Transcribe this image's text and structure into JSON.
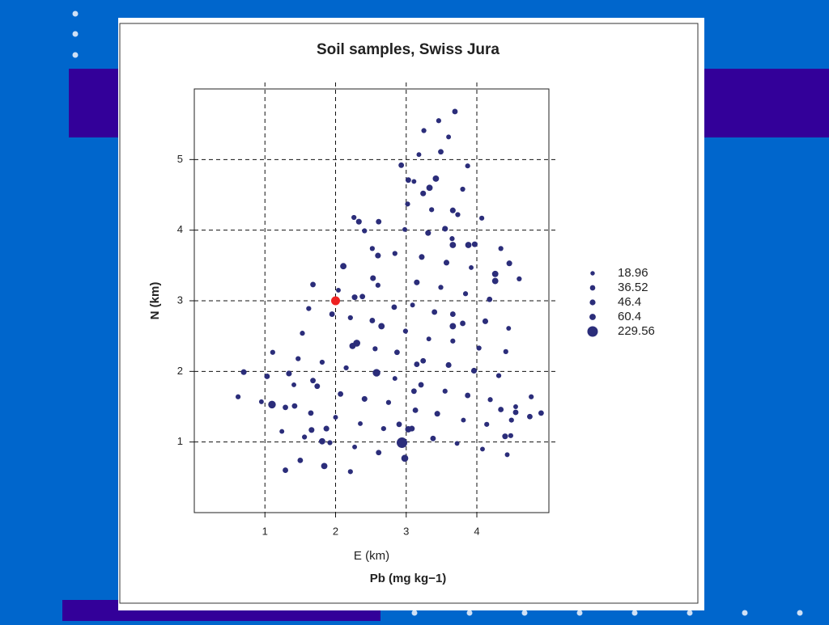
{
  "chart_data": {
    "type": "scatter",
    "title": "Soil samples, Swiss Jura",
    "xlabel": "E (km)",
    "ylabel": "N (km)",
    "size_label": "Pb (mg kg−1)",
    "xlim": [
      0,
      5.02
    ],
    "ylim": [
      0,
      6
    ],
    "xticks": [
      1,
      2,
      3,
      4
    ],
    "yticks": [
      1,
      2,
      3,
      4,
      5
    ],
    "grid": true,
    "color": "#2b2d7a",
    "x": [
      3.69,
      3.46,
      3.25,
      3.6,
      3.49,
      3.18,
      2.93,
      3.87,
      3.03,
      3.11,
      3.42,
      3.33,
      3.24,
      3.8,
      3.02,
      3.36,
      3.66,
      3.73,
      4.07,
      2.26,
      2.33,
      2.61,
      2.41,
      3.31,
      3.55,
      2.98,
      3.65,
      3.66,
      3.88,
      3.97,
      4.34,
      2.52,
      2.6,
      2.84,
      3.22,
      3.57,
      2.11,
      4.46,
      3.92,
      4.26,
      4.26,
      4.6,
      2.53,
      1.68,
      2.6,
      3.15,
      3.49,
      3.84,
      2.04,
      2.27,
      2.38,
      4.18,
      1.62,
      1.95,
      2.83,
      3.09,
      3.4,
      3.66,
      2.21,
      2.52,
      2.65,
      3.66,
      3.8,
      4.12,
      4.45,
      1.53,
      2.99,
      3.32,
      2.3,
      2.24,
      2.56,
      3.66,
      4.03,
      1.11,
      1.47,
      2.87,
      3.24,
      4.41,
      1.81,
      2.15,
      3.15,
      3.6,
      0.7,
      1.03,
      1.34,
      2.58,
      3.96,
      4.31,
      1.68,
      1.74,
      2.84,
      3.21,
      1.41,
      0.62,
      3.11,
      3.55,
      2.07,
      3.87,
      4.77,
      0.95,
      1.1,
      1.29,
      1.42,
      2.41,
      2.75,
      4.19,
      4.55,
      3.44,
      4.34,
      4.55,
      4.75,
      4.91,
      1.65,
      3.13,
      2.0,
      2.35,
      2.9,
      3.81,
      4.14,
      4.49,
      1.24,
      1.66,
      1.87,
      2.68,
      3.03,
      3.08,
      1.81,
      1.92,
      1.56,
      2.94,
      3.38,
      3.72,
      4.4,
      4.48,
      2.27,
      4.08,
      2.61,
      4.43,
      2.98,
      1.5,
      1.84,
      1.29,
      2.21
    ],
    "y": [
      5.68,
      5.55,
      5.41,
      5.32,
      5.11,
      5.07,
      4.92,
      4.91,
      4.71,
      4.69,
      4.73,
      4.6,
      4.52,
      4.58,
      4.37,
      4.29,
      4.28,
      4.22,
      4.17,
      4.18,
      4.12,
      4.12,
      3.99,
      3.96,
      4.02,
      4.01,
      3.88,
      3.79,
      3.79,
      3.8,
      3.74,
      3.74,
      3.64,
      3.67,
      3.62,
      3.54,
      3.49,
      3.53,
      3.47,
      3.38,
      3.28,
      3.31,
      3.32,
      3.23,
      3.22,
      3.26,
      3.19,
      3.1,
      3.15,
      3.05,
      3.06,
      3.02,
      2.89,
      2.81,
      2.91,
      2.94,
      2.84,
      2.81,
      2.76,
      2.72,
      2.64,
      2.64,
      2.68,
      2.71,
      2.61,
      2.54,
      2.57,
      2.46,
      2.4,
      2.36,
      2.32,
      2.43,
      2.33,
      2.27,
      2.18,
      2.27,
      2.15,
      2.28,
      2.13,
      2.05,
      2.1,
      2.09,
      1.99,
      1.93,
      1.97,
      1.98,
      2.01,
      1.94,
      1.87,
      1.79,
      1.9,
      1.81,
      1.81,
      1.64,
      1.72,
      1.72,
      1.68,
      1.66,
      1.64,
      1.57,
      1.53,
      1.49,
      1.51,
      1.61,
      1.56,
      1.6,
      1.5,
      1.4,
      1.46,
      1.42,
      1.36,
      1.41,
      1.41,
      1.45,
      1.35,
      1.26,
      1.25,
      1.31,
      1.25,
      1.31,
      1.15,
      1.17,
      1.19,
      1.19,
      1.18,
      1.19,
      1.01,
      0.99,
      1.07,
      0.99,
      1.05,
      0.98,
      1.08,
      1.09,
      0.93,
      0.9,
      0.85,
      0.82,
      0.77,
      0.74,
      0.66,
      0.6,
      0.58
    ],
    "size": [
      40,
      30,
      30,
      25,
      40,
      25,
      40,
      30,
      40,
      25,
      60,
      60,
      45,
      30,
      30,
      30,
      45,
      30,
      30,
      30,
      45,
      40,
      30,
      45,
      45,
      25,
      30,
      60,
      60,
      45,
      30,
      30,
      45,
      30,
      45,
      45,
      60,
      45,
      25,
      60,
      60,
      30,
      45,
      40,
      30,
      45,
      30,
      30,
      25,
      45,
      40,
      40,
      30,
      40,
      40,
      25,
      40,
      40,
      30,
      40,
      60,
      60,
      40,
      45,
      25,
      30,
      30,
      25,
      80,
      60,
      30,
      30,
      30,
      30,
      30,
      40,
      40,
      30,
      30,
      30,
      40,
      45,
      45,
      40,
      45,
      100,
      45,
      30,
      40,
      40,
      25,
      40,
      25,
      30,
      40,
      30,
      40,
      40,
      30,
      25,
      100,
      40,
      40,
      45,
      30,
      30,
      25,
      45,
      40,
      40,
      40,
      40,
      40,
      40,
      25,
      25,
      40,
      25,
      30,
      30,
      25,
      45,
      45,
      30,
      60,
      45,
      60,
      30,
      30,
      229.56,
      40,
      25,
      45,
      30,
      25,
      25,
      40,
      25,
      80,
      40,
      60,
      40,
      30
    ],
    "size_legend": [
      18.96,
      36.52,
      46.4,
      60.4,
      229.56
    ],
    "highlight": {
      "x": 2,
      "y": 3,
      "color": "#ee2222"
    }
  }
}
